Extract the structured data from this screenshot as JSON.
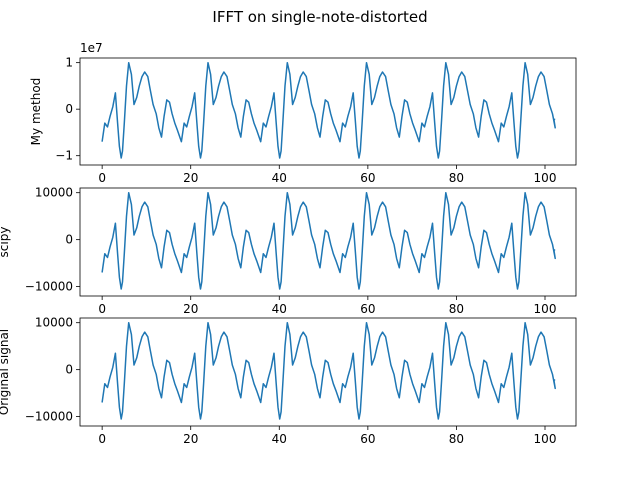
{
  "title": "IFFT on single-note-distorted",
  "line_color": "#1f77b4",
  "chart_data": [
    {
      "type": "line",
      "ylabel": "My method",
      "offset_label": "1e7",
      "xlim": [
        -5,
        107
      ],
      "ylim": [
        -1.2,
        1.1
      ],
      "xticks": [
        0,
        20,
        40,
        60,
        80,
        100
      ],
      "yticks": [
        -1,
        0,
        1
      ],
      "ytick_labels": [
        "−1",
        "0",
        "1"
      ],
      "period": 17.9,
      "x_start": 0,
      "x_end": 102.3,
      "series": [
        {
          "x": [
            0,
            0.6,
            1.2,
            1.8,
            2.4,
            3.0,
            3.5,
            3.9,
            4.3,
            4.6,
            5.0,
            5.5,
            6.0,
            6.6,
            7.2,
            7.8,
            8.4,
            9.0,
            9.6,
            10.3,
            10.9,
            11.5,
            12.2,
            12.8,
            13.4,
            14.0,
            14.6,
            15.2,
            15.8,
            16.4,
            17.0,
            17.9
          ],
          "y": [
            -0.7,
            -0.3,
            -0.38,
            -0.15,
            0.05,
            0.35,
            -0.3,
            -0.8,
            -1.05,
            -0.9,
            -0.3,
            0.5,
            1.0,
            0.75,
            0.1,
            0.25,
            0.5,
            0.7,
            0.8,
            0.7,
            0.4,
            0.1,
            -0.1,
            -0.4,
            -0.6,
            -0.15,
            0.2,
            0.15,
            -0.1,
            -0.3,
            -0.45,
            -0.7
          ]
        }
      ]
    },
    {
      "type": "line",
      "ylabel": "scipy",
      "xlim": [
        -5,
        107
      ],
      "ylim": [
        -12000,
        11000
      ],
      "xticks": [
        0,
        20,
        40,
        60,
        80,
        100
      ],
      "yticks": [
        -10000,
        0,
        10000
      ],
      "ytick_labels": [
        "−10000",
        "0",
        "10000"
      ],
      "period": 17.9,
      "x_start": 0,
      "x_end": 102.3,
      "series": [
        {
          "x": [
            0,
            0.6,
            1.2,
            1.8,
            2.4,
            3.0,
            3.5,
            3.9,
            4.3,
            4.6,
            5.0,
            5.5,
            6.0,
            6.6,
            7.2,
            7.8,
            8.4,
            9.0,
            9.6,
            10.3,
            10.9,
            11.5,
            12.2,
            12.8,
            13.4,
            14.0,
            14.6,
            15.2,
            15.8,
            16.4,
            17.0,
            17.9
          ],
          "y": [
            -7000,
            -3000,
            -3800,
            -1500,
            500,
            3500,
            -3000,
            -8000,
            -10500,
            -9000,
            -3000,
            5000,
            10000,
            7500,
            1000,
            2500,
            5000,
            7000,
            8000,
            7000,
            4000,
            1000,
            -1000,
            -4000,
            -6000,
            -1500,
            2000,
            1500,
            -1000,
            -3000,
            -4500,
            -7000
          ]
        }
      ]
    },
    {
      "type": "line",
      "ylabel": "Original signal",
      "xlim": [
        -5,
        107
      ],
      "ylim": [
        -12000,
        11000
      ],
      "xticks": [
        0,
        20,
        40,
        60,
        80,
        100
      ],
      "yticks": [
        -10000,
        0,
        10000
      ],
      "ytick_labels": [
        "−10000",
        "0",
        "10000"
      ],
      "period": 17.9,
      "x_start": 0,
      "x_end": 102.3,
      "series": [
        {
          "x": [
            0,
            0.6,
            1.2,
            1.8,
            2.4,
            3.0,
            3.5,
            3.9,
            4.3,
            4.6,
            5.0,
            5.5,
            6.0,
            6.6,
            7.2,
            7.8,
            8.4,
            9.0,
            9.6,
            10.3,
            10.9,
            11.5,
            12.2,
            12.8,
            13.4,
            14.0,
            14.6,
            15.2,
            15.8,
            16.4,
            17.0,
            17.9
          ],
          "y": [
            -7000,
            -3000,
            -3800,
            -1500,
            500,
            3500,
            -3000,
            -8000,
            -10500,
            -9000,
            -3000,
            5000,
            10000,
            7500,
            1000,
            2500,
            5000,
            7000,
            8000,
            7000,
            4000,
            1000,
            -1000,
            -4000,
            -6000,
            -1500,
            2000,
            1500,
            -1000,
            -3000,
            -4500,
            -7000
          ]
        }
      ]
    }
  ]
}
